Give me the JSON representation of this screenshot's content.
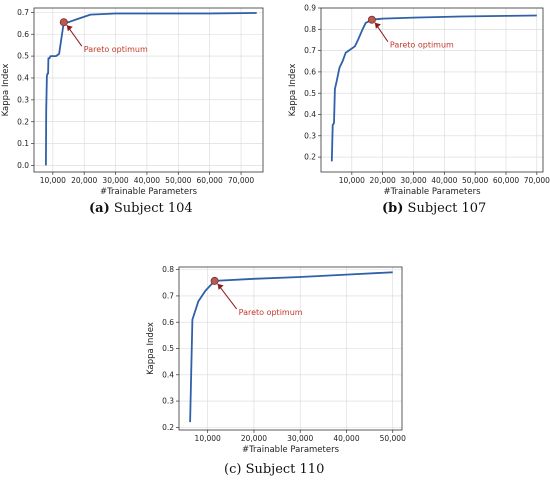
{
  "chart_data": [
    {
      "type": "line",
      "caption_letter": "(a)",
      "caption_text": "Subject 104",
      "xlabel": "#Trainable Parameters",
      "ylabel": "Kappa Index",
      "xlim": [
        4000,
        77000
      ],
      "ylim": [
        -0.03,
        0.72
      ],
      "xticks": [
        10000,
        20000,
        30000,
        40000,
        50000,
        60000,
        70000
      ],
      "xtick_labels": [
        "10,000",
        "20,000",
        "30,000",
        "40,000",
        "50,000",
        "60,000",
        "70,000"
      ],
      "yticks": [
        0.0,
        0.1,
        0.2,
        0.3,
        0.4,
        0.5,
        0.6,
        0.7
      ],
      "ytick_labels": [
        "0.0",
        "0.1",
        "0.2",
        "0.3",
        "0.4",
        "0.5",
        "0.6",
        "0.7"
      ],
      "x": [
        7800,
        7900,
        8100,
        8300,
        8500,
        8600,
        8900,
        9300,
        10000,
        11000,
        12000,
        13500,
        15000,
        18000,
        22000,
        30000,
        45000,
        60000,
        75000
      ],
      "y": [
        0.0,
        0.25,
        0.41,
        0.42,
        0.42,
        0.49,
        0.49,
        0.5,
        0.5,
        0.5,
        0.51,
        0.655,
        0.655,
        0.67,
        0.69,
        0.695,
        0.695,
        0.695,
        0.697
      ],
      "pareto": {
        "x": 13500,
        "y": 0.655,
        "label": "Pareto optimum"
      },
      "grid": true
    },
    {
      "type": "line",
      "caption_letter": "(b)",
      "caption_text": "Subject 107",
      "xlabel": "#Trainable Parameters",
      "ylabel": "Kappa Index",
      "xlim": [
        0,
        72000
      ],
      "ylim": [
        0.13,
        0.9
      ],
      "xticks": [
        10000,
        20000,
        30000,
        40000,
        50000,
        60000,
        70000
      ],
      "xtick_labels": [
        "10,000",
        "20,000",
        "30,000",
        "40,000",
        "50,000",
        "60,000",
        "70,000"
      ],
      "yticks": [
        0.2,
        0.3,
        0.4,
        0.5,
        0.6,
        0.7,
        0.8,
        0.9
      ],
      "ytick_labels": [
        "0.2",
        "0.3",
        "0.4",
        "0.5",
        "0.6",
        "0.7",
        "0.8",
        "0.9"
      ],
      "x": [
        3500,
        3800,
        4200,
        4500,
        5000,
        6000,
        7000,
        8000,
        10000,
        11000,
        12000,
        13500,
        14500,
        16500,
        20000,
        30000,
        45000,
        60000,
        70000
      ],
      "y": [
        0.18,
        0.35,
        0.36,
        0.52,
        0.55,
        0.62,
        0.65,
        0.69,
        0.71,
        0.72,
        0.75,
        0.8,
        0.83,
        0.845,
        0.85,
        0.855,
        0.86,
        0.863,
        0.865
      ],
      "pareto": {
        "x": 16500,
        "y": 0.845,
        "label": "Pareto optimum"
      },
      "grid": true
    },
    {
      "type": "line",
      "caption_letter": "(c)",
      "caption_text": "Subject 110",
      "xlabel": "#Trainable Parameters",
      "ylabel": "Kappa Index",
      "xlim": [
        3800,
        52000
      ],
      "ylim": [
        0.19,
        0.81
      ],
      "xticks": [
        10000,
        20000,
        30000,
        40000,
        50000
      ],
      "xtick_labels": [
        "10,000",
        "20,000",
        "30,000",
        "40,000",
        "50,000"
      ],
      "yticks": [
        0.2,
        0.3,
        0.4,
        0.5,
        0.6,
        0.7,
        0.8
      ],
      "ytick_labels": [
        "0.2",
        "0.3",
        "0.4",
        "0.5",
        "0.6",
        "0.7",
        "0.8"
      ],
      "x": [
        6200,
        6700,
        8000,
        9500,
        11500,
        20000,
        30000,
        40000,
        50000
      ],
      "y": [
        0.22,
        0.61,
        0.68,
        0.72,
        0.757,
        0.765,
        0.772,
        0.781,
        0.79
      ],
      "pareto": {
        "x": 11500,
        "y": 0.757,
        "label": "Pareto optimum"
      },
      "grid": true
    }
  ],
  "colors": {
    "line": "#3060a8",
    "marker_fill": "#b85a50",
    "marker_edge": "#7a3030",
    "annotation": "#c0392b",
    "grid": "#d8d8d8"
  }
}
